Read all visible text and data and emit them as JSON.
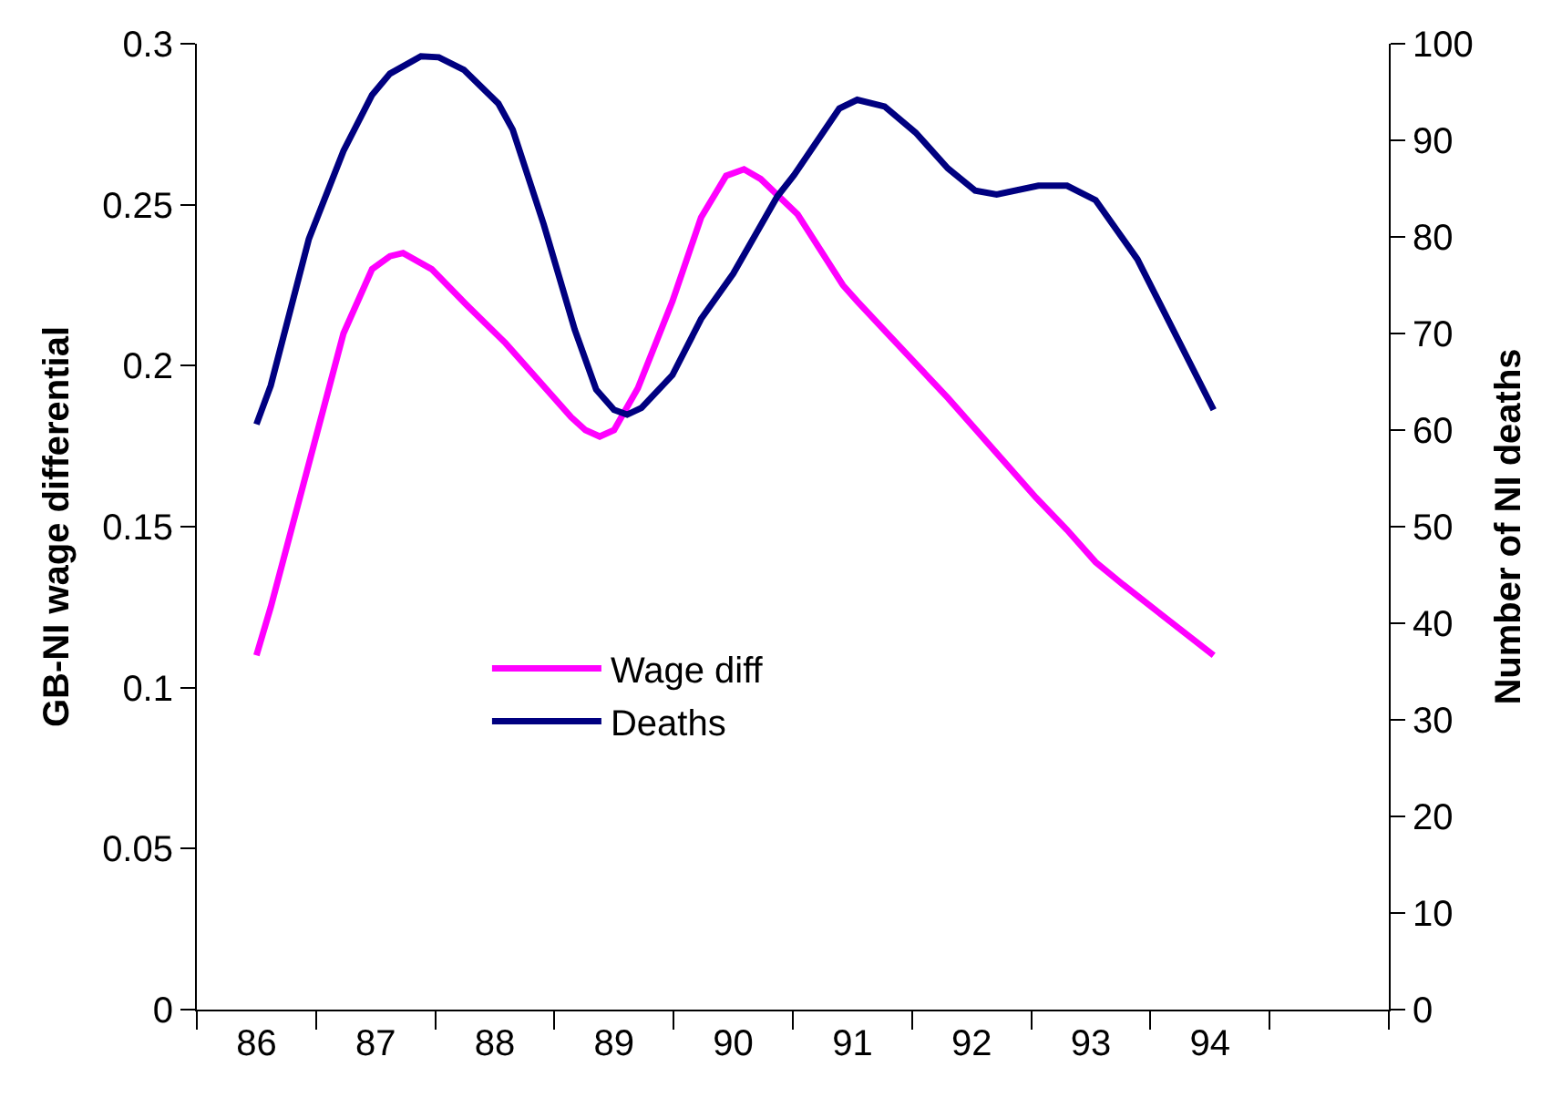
{
  "chart_data": {
    "type": "line",
    "ylabel": "GB-NI wage differential",
    "y2label": "Number of NI deaths",
    "xlim": [
      85.5,
      95.5
    ],
    "xticks": [
      {
        "value": 85.5,
        "label": null
      },
      86,
      {
        "value": 86.5,
        "label": null
      },
      87,
      {
        "value": 87.5,
        "label": null
      },
      88,
      {
        "value": 88.5,
        "label": null
      },
      89,
      {
        "value": 89.5,
        "label": null
      },
      90,
      {
        "value": 90.5,
        "label": null
      },
      91,
      {
        "value": 91.5,
        "label": null
      },
      92,
      {
        "value": 92.5,
        "label": null
      },
      93,
      {
        "value": 93.5,
        "label": null
      },
      94,
      {
        "value": 94.5,
        "label": null
      },
      {
        "value": 95.5,
        "label": null
      }
    ],
    "ylim": [
      0,
      0.3
    ],
    "yticks": [
      0,
      0.05,
      0.1,
      0.15,
      0.2,
      0.25,
      0.3
    ],
    "y2lim": [
      0,
      100
    ],
    "y2ticks": [
      0,
      10,
      20,
      30,
      40,
      50,
      60,
      70,
      80,
      90,
      100
    ],
    "grid": false,
    "legend": "center",
    "marker": "none",
    "line_style": "solid",
    "series": [
      {
        "name": "Wage diff",
        "color": "#ff00ff",
        "x": [
          86.0,
          86.12,
          86.73,
          86.97,
          87.12,
          87.23,
          87.47,
          87.76,
          88.09,
          88.64,
          88.76,
          88.88,
          89.0,
          89.2,
          89.49,
          89.73,
          89.94,
          90.09,
          90.23,
          90.54,
          90.92,
          91.04,
          91.8,
          92.54,
          92.8,
          93.04,
          93.27,
          94.03
        ],
        "values": [
          0.11,
          0.125,
          0.21,
          0.23,
          0.234,
          0.235,
          0.23,
          0.219,
          0.207,
          0.184,
          0.18,
          0.178,
          0.18,
          0.193,
          0.22,
          0.246,
          0.259,
          0.261,
          0.258,
          0.247,
          0.225,
          0.22,
          0.19,
          0.159,
          0.149,
          0.139,
          0.132,
          0.11
        ]
      },
      {
        "name": "Deaths",
        "color": "#000080",
        "axis": "y2",
        "x": [
          86.0,
          86.12,
          86.44,
          86.73,
          86.97,
          87.12,
          87.38,
          87.53,
          87.74,
          88.03,
          88.15,
          88.41,
          88.67,
          88.85,
          89.0,
          89.11,
          89.23,
          89.49,
          89.73,
          90.0,
          90.37,
          90.51,
          90.89,
          91.04,
          91.27,
          91.53,
          91.8,
          92.03,
          92.21,
          92.56,
          92.8,
          93.04,
          93.39,
          94.03
        ],
        "values": [
          60.6,
          64.6,
          79.8,
          88.9,
          94.7,
          96.9,
          98.7,
          98.6,
          97.3,
          93.8,
          91.1,
          81.3,
          70.4,
          64.2,
          62.1,
          61.6,
          62.3,
          65.7,
          71.5,
          76.2,
          84.2,
          86.4,
          93.3,
          94.2,
          93.5,
          90.8,
          87.1,
          84.8,
          84.4,
          85.3,
          85.3,
          83.8,
          77.7,
          62.1
        ]
      }
    ]
  }
}
